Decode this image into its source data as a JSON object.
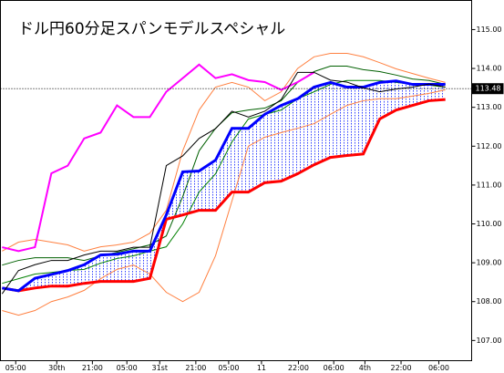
{
  "chart_data": {
    "type": "line",
    "title": "ドル円60分足スパンモデルスペシャル",
    "x": [
      0,
      1,
      2,
      3,
      4,
      5,
      6,
      7,
      8,
      9,
      10,
      11,
      12,
      13,
      14,
      15,
      16,
      17,
      18,
      19,
      20,
      21,
      22,
      23,
      24,
      25,
      26,
      27
    ],
    "xlim": [
      -0.1,
      28.6
    ],
    "xticks": [
      {
        "value": 0.83,
        "label": "05:00"
      },
      {
        "value": 3.33,
        "label": "30th"
      },
      {
        "value": 5.5,
        "label": "21:00"
      },
      {
        "value": 7.6,
        "label": "05:00"
      },
      {
        "value": 9.6,
        "label": "31st"
      },
      {
        "value": 11.8,
        "label": "21:00"
      },
      {
        "value": 13.8,
        "label": "05:00"
      },
      {
        "value": 15.8,
        "label": "11"
      },
      {
        "value": 18.05,
        "label": "22:00"
      },
      {
        "value": 20.2,
        "label": "06:00"
      },
      {
        "value": 22.1,
        "label": "4th"
      },
      {
        "value": 24.3,
        "label": "22:00"
      },
      {
        "value": 26.6,
        "label": "06:00"
      }
    ],
    "ylim": [
      106.48,
      115.75
    ],
    "yticks": [
      {
        "value": 107,
        "label": "107.00"
      },
      {
        "value": 108,
        "label": "108.00"
      },
      {
        "value": 109,
        "label": "109.00"
      },
      {
        "value": 110,
        "label": "110.00"
      },
      {
        "value": 111,
        "label": "111.00"
      },
      {
        "value": 112,
        "label": "112.00"
      },
      {
        "value": 113,
        "label": "113.00"
      },
      {
        "value": 114,
        "label": "114.00"
      },
      {
        "value": 115,
        "label": "115.00"
      }
    ],
    "last_price": {
      "value": 113.48,
      "label": "113.48"
    },
    "series": [
      {
        "color": "#ff8040",
        "width": 1,
        "values": [
          109.3,
          109.53,
          109.6,
          109.53,
          109.46,
          109.3,
          109.41,
          109.46,
          109.53,
          109.76,
          110.35,
          111.88,
          112.93,
          113.52,
          113.64,
          113.52,
          113.17,
          113.4,
          114.0,
          114.3,
          114.39,
          114.39,
          114.3,
          114.15,
          113.99,
          113.87,
          113.75,
          113.64
        ]
      },
      {
        "color": "#ff8040",
        "width": 1,
        "values": [
          107.77,
          107.65,
          107.77,
          108.0,
          108.12,
          108.29,
          108.59,
          108.83,
          108.94,
          108.71,
          108.24,
          108.0,
          108.24,
          109.18,
          110.59,
          112.0,
          112.23,
          112.35,
          112.46,
          112.58,
          112.82,
          113.05,
          113.17,
          113.22,
          113.22,
          113.29,
          113.36,
          113.45
        ]
      },
      {
        "color": "#006000",
        "width": 1,
        "values": [
          108.94,
          109.06,
          109.13,
          109.13,
          109.13,
          109.06,
          109.18,
          109.27,
          109.36,
          109.46,
          109.69,
          110.7,
          111.88,
          112.46,
          112.86,
          112.93,
          112.98,
          113.17,
          113.64,
          113.92,
          114.06,
          114.06,
          113.97,
          113.92,
          113.83,
          113.73,
          113.69,
          113.59
        ]
      },
      {
        "color": "#008000",
        "width": 1,
        "values": [
          108.47,
          108.59,
          108.71,
          108.75,
          108.8,
          108.83,
          108.99,
          109.11,
          109.18,
          109.3,
          109.41,
          110.0,
          110.82,
          111.29,
          112.11,
          112.7,
          112.82,
          112.93,
          113.22,
          113.4,
          113.59,
          113.69,
          113.69,
          113.69,
          113.64,
          113.59,
          113.57,
          113.52
        ]
      },
      {
        "color": "#ff00ff",
        "width": 2,
        "values": [
          109.4,
          109.3,
          109.4,
          111.3,
          111.5,
          112.2,
          112.35,
          113.05,
          112.75,
          112.75,
          113.4,
          113.75,
          114.1,
          113.75,
          113.85,
          113.7,
          113.65,
          113.45,
          113.65,
          113.9,
          null,
          null,
          null,
          null,
          null,
          null,
          null,
          null
        ]
      },
      {
        "color": "#ff0000",
        "width": 3,
        "values": [
          108.35,
          108.28,
          108.35,
          108.4,
          108.4,
          108.47,
          108.52,
          108.52,
          108.52,
          108.6,
          110.12,
          110.23,
          110.35,
          110.35,
          110.82,
          110.82,
          111.06,
          111.1,
          111.29,
          111.52,
          111.71,
          111.76,
          111.8,
          112.7,
          112.93,
          113.05,
          113.17,
          113.2
        ]
      },
      {
        "color": "#0000ff",
        "width": 3,
        "values": [
          108.35,
          108.28,
          108.6,
          108.7,
          108.8,
          108.95,
          109.2,
          109.22,
          109.3,
          109.3,
          110.23,
          111.34,
          111.36,
          111.64,
          112.46,
          112.46,
          112.82,
          113.05,
          113.22,
          113.52,
          113.64,
          113.52,
          113.52,
          113.64,
          113.68,
          113.59,
          113.59,
          113.59
        ]
      },
      {
        "color": "#000000",
        "width": 1,
        "values": [
          108.2,
          108.8,
          108.95,
          109.06,
          109.06,
          109.2,
          109.3,
          109.3,
          109.4,
          109.4,
          111.5,
          111.75,
          112.2,
          112.45,
          112.9,
          112.75,
          112.9,
          113.2,
          113.9,
          113.9,
          113.7,
          113.65,
          113.5,
          113.4,
          113.47,
          113.52,
          113.6,
          113.52
        ]
      }
    ]
  }
}
